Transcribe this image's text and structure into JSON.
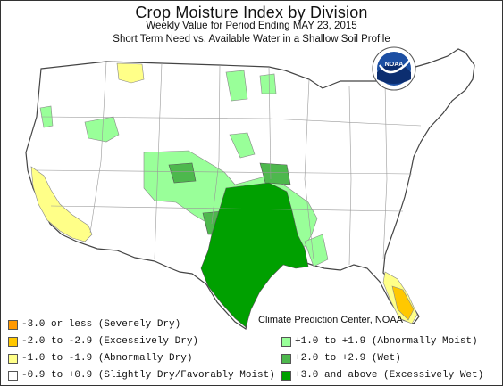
{
  "header": {
    "title": "Crop Moisture Index by Division",
    "subtitle": "Weekly Value for Period Ending MAY 23, 2015",
    "description": "Short Term Need vs. Available Water in a Shallow Soil Profile"
  },
  "logo": {
    "text": "NOAA",
    "icon": "noaa-logo"
  },
  "credit": "Climate Prediction Center, NOAA",
  "colors": {
    "severely_dry": "#ff9900",
    "excessively_dry": "#ffc800",
    "abnormally_dry": "#ffff88",
    "slightly_dry_favorably_moist": "#ffffff",
    "abnormally_moist": "#99ff99",
    "wet": "#4db84d",
    "excessively_wet": "#00a000",
    "border": "#444444"
  },
  "legend": {
    "left": [
      {
        "label": "-3.0 or less (Severely Dry)",
        "color": "#ff9900"
      },
      {
        "label": "-2.0 to -2.9 (Excessively Dry)",
        "color": "#ffc800"
      },
      {
        "label": "-1.0 to -1.9 (Abnormally Dry)",
        "color": "#ffff88"
      },
      {
        "label": "-0.9 to +0.9 (Slightly Dry/Favorably Moist)",
        "color": "#ffffff"
      }
    ],
    "right": [
      {
        "label": "+1.0 to +1.9 (Abnormally Moist)",
        "color": "#99ff99"
      },
      {
        "label": "+2.0 to +2.9 (Wet)",
        "color": "#4db84d"
      },
      {
        "label": "+3.0 and above (Excessively Wet)",
        "color": "#00a000"
      }
    ]
  }
}
